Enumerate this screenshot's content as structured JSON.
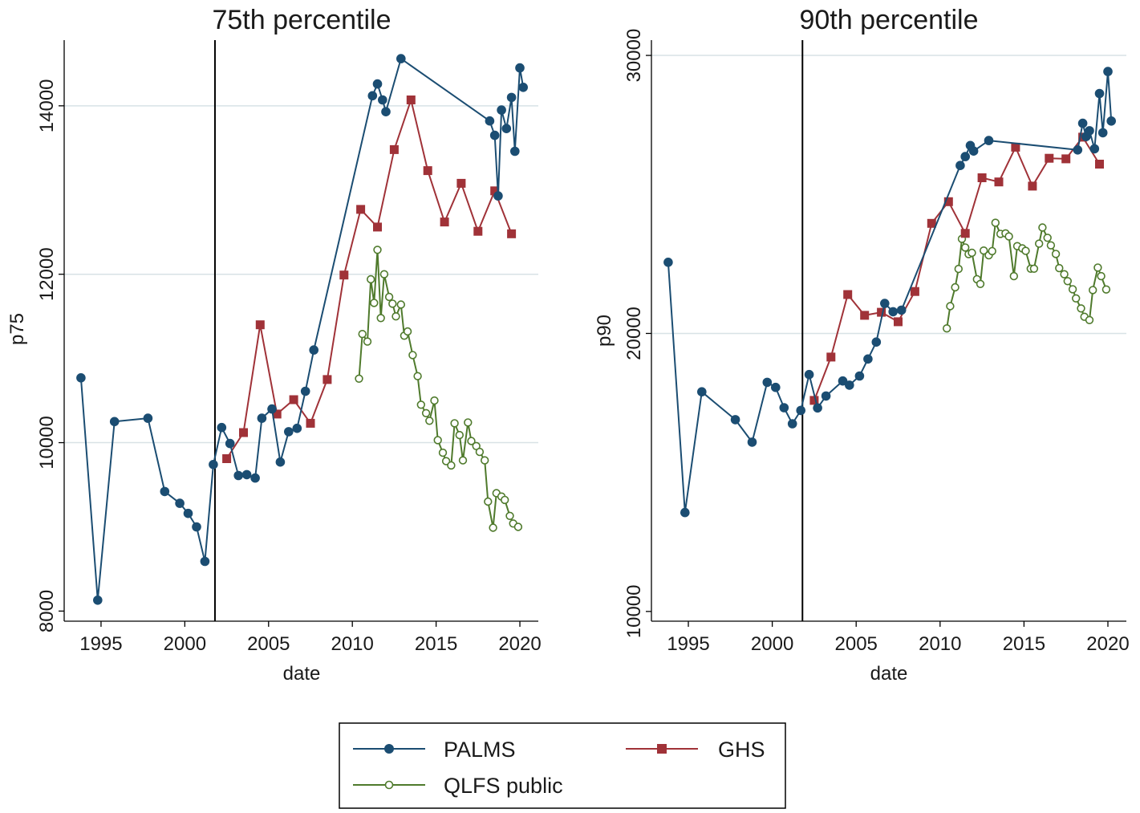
{
  "colors": {
    "PALMS": "#1b4d72",
    "GHS": "#a03238",
    "QLFS public": "#4f7a2c",
    "grid": "#d8e2e6",
    "axis": "#000000"
  },
  "legend": {
    "position": "bottom-center",
    "entries": [
      {
        "label": "PALMS",
        "marker": "filled-circle"
      },
      {
        "label": "GHS",
        "marker": "filled-square"
      },
      {
        "label": "QLFS public",
        "marker": "hollow-circle"
      }
    ]
  },
  "chart_data": [
    {
      "type": "line",
      "title": "75th percentile",
      "xlabel": "date",
      "ylabel": "p75",
      "xlim": [
        1992.8,
        2021.1
      ],
      "ylim": [
        7880,
        14780
      ],
      "xticks": [
        1995,
        2000,
        2005,
        2010,
        2015,
        2020
      ],
      "yticks": [
        8000,
        10000,
        12000,
        14000
      ],
      "gridlines": [
        10000,
        12000,
        14000
      ],
      "vline": 2001.8,
      "series": [
        {
          "name": "PALMS",
          "points": [
            [
              1993.8,
              10770
            ],
            [
              1994.8,
              8130
            ],
            [
              1995.8,
              10250
            ],
            [
              1997.8,
              10290
            ],
            [
              1998.8,
              9420
            ],
            [
              1999.7,
              9280
            ],
            [
              2000.2,
              9160
            ],
            [
              2000.7,
              9000
            ],
            [
              2001.2,
              8590
            ],
            [
              2001.7,
              9740
            ],
            [
              2002.2,
              10180
            ],
            [
              2002.7,
              9990
            ],
            [
              2003.2,
              9610
            ],
            [
              2003.7,
              9620
            ],
            [
              2004.2,
              9580
            ],
            [
              2004.6,
              10290
            ],
            [
              2005.2,
              10400
            ],
            [
              2005.7,
              9770
            ],
            [
              2006.2,
              10130
            ],
            [
              2006.7,
              10170
            ],
            [
              2007.2,
              10610
            ],
            [
              2007.7,
              11100
            ],
            [
              2011.2,
              14120
            ],
            [
              2011.5,
              14260
            ],
            [
              2011.8,
              14070
            ],
            [
              2012.0,
              13930
            ],
            [
              2012.9,
              14560
            ],
            [
              2018.2,
              13820
            ],
            [
              2018.5,
              13650
            ],
            [
              2018.7,
              12930
            ],
            [
              2018.9,
              13950
            ],
            [
              2019.2,
              13730
            ],
            [
              2019.5,
              14100
            ],
            [
              2019.7,
              13460
            ],
            [
              2020.0,
              14450
            ],
            [
              2020.2,
              14220
            ]
          ]
        },
        {
          "name": "GHS",
          "points": [
            [
              2002.5,
              9810
            ],
            [
              2003.5,
              10120
            ],
            [
              2004.5,
              11400
            ],
            [
              2005.5,
              10340
            ],
            [
              2006.5,
              10510
            ],
            [
              2007.5,
              10230
            ],
            [
              2008.5,
              10750
            ],
            [
              2009.5,
              11990
            ],
            [
              2010.5,
              12770
            ],
            [
              2011.5,
              12560
            ],
            [
              2012.5,
              13480
            ],
            [
              2013.5,
              14070
            ],
            [
              2014.5,
              13230
            ],
            [
              2015.5,
              12620
            ],
            [
              2016.5,
              13080
            ],
            [
              2017.5,
              12510
            ],
            [
              2018.5,
              12990
            ],
            [
              2019.5,
              12480
            ]
          ]
        },
        {
          "name": "QLFS public",
          "points": [
            [
              2010.4,
              10760
            ],
            [
              2010.6,
              11290
            ],
            [
              2010.9,
              11200
            ],
            [
              2011.1,
              11940
            ],
            [
              2011.3,
              11660
            ],
            [
              2011.5,
              12290
            ],
            [
              2011.7,
              11480
            ],
            [
              2011.9,
              12000
            ],
            [
              2012.2,
              11730
            ],
            [
              2012.4,
              11650
            ],
            [
              2012.6,
              11500
            ],
            [
              2012.9,
              11640
            ],
            [
              2013.1,
              11270
            ],
            [
              2013.3,
              11320
            ],
            [
              2013.6,
              11040
            ],
            [
              2013.9,
              10790
            ],
            [
              2014.1,
              10450
            ],
            [
              2014.4,
              10350
            ],
            [
              2014.6,
              10260
            ],
            [
              2014.9,
              10500
            ],
            [
              2015.1,
              10030
            ],
            [
              2015.4,
              9880
            ],
            [
              2015.6,
              9780
            ],
            [
              2015.9,
              9730
            ],
            [
              2016.1,
              10230
            ],
            [
              2016.4,
              10090
            ],
            [
              2016.6,
              9790
            ],
            [
              2016.9,
              10240
            ],
            [
              2017.1,
              10020
            ],
            [
              2017.4,
              9960
            ],
            [
              2017.6,
              9890
            ],
            [
              2017.9,
              9790
            ],
            [
              2018.1,
              9300
            ],
            [
              2018.4,
              8990
            ],
            [
              2018.6,
              9400
            ],
            [
              2018.9,
              9360
            ],
            [
              2019.1,
              9320
            ],
            [
              2019.4,
              9130
            ],
            [
              2019.6,
              9040
            ],
            [
              2019.9,
              9000
            ]
          ]
        }
      ]
    },
    {
      "type": "line",
      "title": "90th percentile",
      "xlabel": "date",
      "ylabel": "p90",
      "xlim": [
        1992.8,
        2021.1
      ],
      "ylim": [
        9650,
        30550
      ],
      "xticks": [
        1995,
        2000,
        2005,
        2010,
        2015,
        2020
      ],
      "yticks": [
        10000,
        20000,
        30000
      ],
      "gridlines": [
        20000,
        30000
      ],
      "vline": 2001.8,
      "series": [
        {
          "name": "PALMS",
          "points": [
            [
              1993.8,
              22560
            ],
            [
              1994.8,
              13560
            ],
            [
              1995.8,
              17900
            ],
            [
              1997.8,
              16900
            ],
            [
              1998.8,
              16090
            ],
            [
              1999.7,
              18240
            ],
            [
              2000.2,
              18060
            ],
            [
              2000.7,
              17330
            ],
            [
              2001.2,
              16750
            ],
            [
              2001.7,
              17230
            ],
            [
              2002.2,
              18520
            ],
            [
              2002.7,
              17320
            ],
            [
              2003.2,
              17750
            ],
            [
              2004.2,
              18290
            ],
            [
              2004.6,
              18140
            ],
            [
              2005.2,
              18470
            ],
            [
              2005.7,
              19080
            ],
            [
              2006.2,
              19690
            ],
            [
              2006.7,
              21080
            ],
            [
              2007.2,
              20780
            ],
            [
              2007.7,
              20840
            ],
            [
              2011.2,
              26040
            ],
            [
              2011.5,
              26360
            ],
            [
              2011.8,
              26760
            ],
            [
              2012.0,
              26560
            ],
            [
              2012.9,
              26940
            ],
            [
              2018.2,
              26600
            ],
            [
              2018.5,
              27560
            ],
            [
              2018.7,
              27080
            ],
            [
              2018.9,
              27290
            ],
            [
              2019.2,
              26640
            ],
            [
              2019.5,
              28630
            ],
            [
              2019.7,
              27220
            ],
            [
              2020.0,
              29420
            ],
            [
              2020.2,
              27640
            ]
          ]
        },
        {
          "name": "GHS",
          "points": [
            [
              2002.5,
              17590
            ],
            [
              2003.5,
              19150
            ],
            [
              2004.5,
              21400
            ],
            [
              2005.5,
              20650
            ],
            [
              2006.5,
              20760
            ],
            [
              2007.5,
              20420
            ],
            [
              2008.5,
              21510
            ],
            [
              2009.5,
              23960
            ],
            [
              2010.5,
              24740
            ],
            [
              2011.5,
              23600
            ],
            [
              2012.5,
              25600
            ],
            [
              2013.5,
              25450
            ],
            [
              2014.5,
              26700
            ],
            [
              2015.5,
              25300
            ],
            [
              2016.5,
              26300
            ],
            [
              2017.5,
              26280
            ],
            [
              2018.5,
              27060
            ],
            [
              2019.5,
              26090
            ]
          ]
        },
        {
          "name": "QLFS public",
          "points": [
            [
              2010.4,
              20180
            ],
            [
              2010.6,
              20980
            ],
            [
              2010.9,
              21660
            ],
            [
              2011.1,
              22320
            ],
            [
              2011.3,
              23400
            ],
            [
              2011.5,
              23090
            ],
            [
              2011.7,
              22850
            ],
            [
              2011.9,
              22900
            ],
            [
              2012.2,
              21950
            ],
            [
              2012.4,
              21780
            ],
            [
              2012.6,
              22980
            ],
            [
              2012.9,
              22810
            ],
            [
              2013.1,
              22960
            ],
            [
              2013.3,
              23980
            ],
            [
              2013.6,
              23580
            ],
            [
              2013.9,
              23600
            ],
            [
              2014.1,
              23490
            ],
            [
              2014.4,
              22060
            ],
            [
              2014.6,
              23140
            ],
            [
              2014.9,
              23060
            ],
            [
              2015.1,
              22970
            ],
            [
              2015.4,
              22330
            ],
            [
              2015.6,
              22330
            ],
            [
              2015.9,
              23230
            ],
            [
              2016.1,
              23810
            ],
            [
              2016.4,
              23440
            ],
            [
              2016.6,
              23170
            ],
            [
              2016.9,
              22860
            ],
            [
              2017.1,
              22350
            ],
            [
              2017.4,
              22130
            ],
            [
              2017.6,
              21880
            ],
            [
              2017.9,
              21590
            ],
            [
              2018.1,
              21260
            ],
            [
              2018.4,
              20900
            ],
            [
              2018.6,
              20600
            ],
            [
              2018.9,
              20480
            ],
            [
              2019.1,
              21560
            ],
            [
              2019.4,
              22370
            ],
            [
              2019.6,
              22060
            ],
            [
              2019.9,
              21580
            ]
          ]
        }
      ]
    }
  ]
}
